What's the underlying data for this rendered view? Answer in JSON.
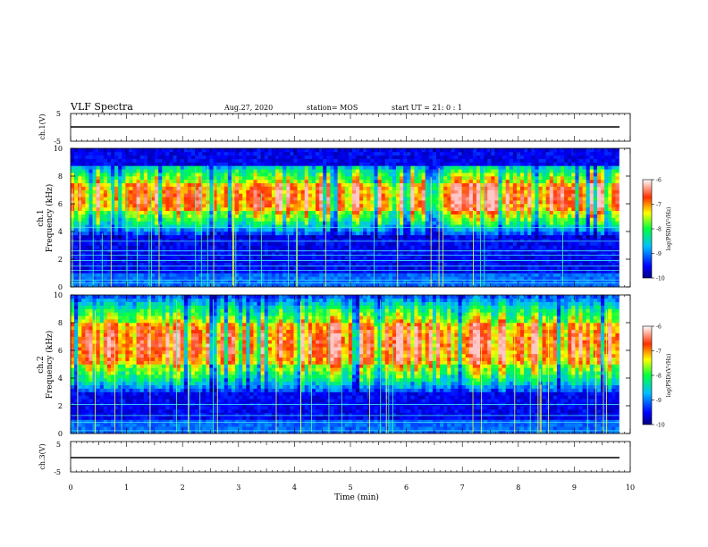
{
  "header": {
    "title": "VLF Spectra",
    "date": "Aug.27, 2020",
    "station": "station= MOS",
    "start_ut": "start  UT  =    21: 0   : 1"
  },
  "chart_data": [
    {
      "type": "line",
      "ylabel": "ch.1(V)",
      "ylim": [
        -5,
        5
      ],
      "y_ticks": [
        "5",
        "-5"
      ],
      "trace_level": 0
    },
    {
      "type": "heatmap",
      "ylabel_channel": "ch.1",
      "ylabel": "Frequency (kHz)",
      "ylim": [
        0,
        10
      ],
      "y_ticks": [
        "0",
        "2",
        "4",
        "6",
        "8",
        "10"
      ],
      "colorbar": {
        "label": "log(PSD)(V²/Hz)",
        "ticks": [
          "-6",
          "-7",
          "-8",
          "-9",
          "-10"
        ],
        "range": [
          -10,
          -6
        ]
      },
      "band_kHz": [
        3.5,
        8.8
      ],
      "peak_kHz": [
        5.5,
        7.5
      ],
      "line_kHz": [
        0.3,
        0.5,
        1.2,
        1.5,
        1.9,
        2.3,
        2.6,
        3.3,
        4.3
      ]
    },
    {
      "type": "heatmap",
      "ylabel_channel": "ch.2",
      "ylabel": "Frequency (kHz)",
      "ylim": [
        0,
        10
      ],
      "y_ticks": [
        "0",
        "2",
        "4",
        "6",
        "8",
        "10"
      ],
      "colorbar": {
        "label": "log(PSD)(V²/Hz)",
        "ticks": [
          "-6",
          "-7",
          "-8",
          "-9",
          "-10"
        ],
        "range": [
          -10,
          -6
        ]
      },
      "band_kHz": [
        3.0,
        9.9
      ],
      "peak_kHz": [
        5.0,
        8.0
      ],
      "line_kHz": [
        0.2,
        0.8,
        1.3,
        2.1
      ]
    },
    {
      "type": "line",
      "ylabel": "ch.3(V)",
      "ylim": [
        -5,
        5
      ],
      "y_ticks": [
        "5",
        "-5"
      ],
      "trace_level": 0
    }
  ],
  "x_axis": {
    "label": "Time (min)",
    "xlim": [
      0,
      10
    ],
    "ticks": [
      "0",
      "1",
      "2",
      "3",
      "4",
      "5",
      "6",
      "7",
      "8",
      "9",
      "10"
    ],
    "data_end_min": 9.8
  },
  "colors": {
    "accent_low": "#000080",
    "accent_high": "#ff0000",
    "background": "#ffffff"
  }
}
